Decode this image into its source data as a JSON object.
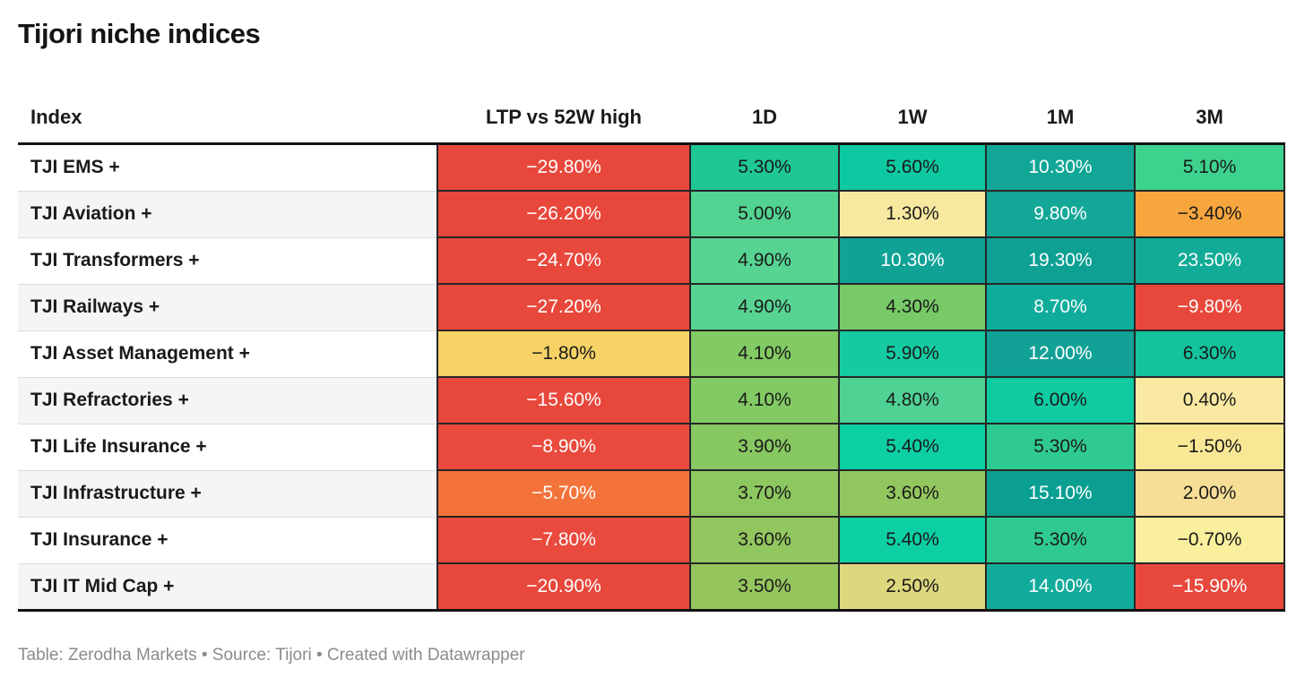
{
  "title": "Tijori niche indices",
  "footer": "Table: Zerodha Markets • Source: Tijori • Created with Datawrapper",
  "table": {
    "columns": [
      "Index",
      "LTP vs 52W high",
      "1D",
      "1W",
      "1M",
      "3M"
    ],
    "rows": [
      {
        "index": "TJI EMS +",
        "cells": [
          {
            "text": "−29.80%",
            "bg": "#e8483c",
            "fg": "#ffffff"
          },
          {
            "text": "5.30%",
            "bg": "#1fc795",
            "fg": "#1a1a1a"
          },
          {
            "text": "5.60%",
            "bg": "#0dc9a1",
            "fg": "#1a1a1a"
          },
          {
            "text": "10.30%",
            "bg": "#11a696",
            "fg": "#ffffff"
          },
          {
            "text": "5.10%",
            "bg": "#3ed28f",
            "fg": "#1a1a1a"
          }
        ]
      },
      {
        "index": "TJI Aviation +",
        "cells": [
          {
            "text": "−26.20%",
            "bg": "#e8483c",
            "fg": "#ffffff"
          },
          {
            "text": "5.00%",
            "bg": "#52d391",
            "fg": "#1a1a1a"
          },
          {
            "text": "1.30%",
            "bg": "#f8e9a1",
            "fg": "#1a1a1a"
          },
          {
            "text": "9.80%",
            "bg": "#13a797",
            "fg": "#ffffff"
          },
          {
            "text": "−3.40%",
            "bg": "#f7a63e",
            "fg": "#1a1a1a"
          }
        ]
      },
      {
        "index": "TJI Transformers +",
        "cells": [
          {
            "text": "−24.70%",
            "bg": "#e8483c",
            "fg": "#ffffff"
          },
          {
            "text": "4.90%",
            "bg": "#57d492",
            "fg": "#1a1a1a"
          },
          {
            "text": "10.30%",
            "bg": "#10a295",
            "fg": "#ffffff"
          },
          {
            "text": "19.30%",
            "bg": "#0da093",
            "fg": "#ffffff"
          },
          {
            "text": "23.50%",
            "bg": "#12ab97",
            "fg": "#ffffff"
          }
        ]
      },
      {
        "index": "TJI Railways +",
        "cells": [
          {
            "text": "−27.20%",
            "bg": "#e8483c",
            "fg": "#ffffff"
          },
          {
            "text": "4.90%",
            "bg": "#57d492",
            "fg": "#1a1a1a"
          },
          {
            "text": "4.30%",
            "bg": "#77ca67",
            "fg": "#1a1a1a"
          },
          {
            "text": "8.70%",
            "bg": "#0fac9c",
            "fg": "#ffffff"
          },
          {
            "text": "−9.80%",
            "bg": "#e8483c",
            "fg": "#ffffff"
          }
        ]
      },
      {
        "index": "TJI Asset Management +",
        "cells": [
          {
            "text": "−1.80%",
            "bg": "#f7d266",
            "fg": "#1a1a1a"
          },
          {
            "text": "4.10%",
            "bg": "#82ca63",
            "fg": "#1a1a1a"
          },
          {
            "text": "5.90%",
            "bg": "#14cba1",
            "fg": "#1a1a1a"
          },
          {
            "text": "12.00%",
            "bg": "#12a196",
            "fg": "#ffffff"
          },
          {
            "text": "6.30%",
            "bg": "#12c39c",
            "fg": "#1a1a1a"
          }
        ]
      },
      {
        "index": "TJI Refractories +",
        "cells": [
          {
            "text": "−15.60%",
            "bg": "#e8483c",
            "fg": "#ffffff"
          },
          {
            "text": "4.10%",
            "bg": "#82ca63",
            "fg": "#1a1a1a"
          },
          {
            "text": "4.80%",
            "bg": "#4fd294",
            "fg": "#1a1a1a"
          },
          {
            "text": "6.00%",
            "bg": "#0fcba2",
            "fg": "#1a1a1a"
          },
          {
            "text": "0.40%",
            "bg": "#f9e9a2",
            "fg": "#1a1a1a"
          }
        ]
      },
      {
        "index": "TJI Life Insurance +",
        "cells": [
          {
            "text": "−8.90%",
            "bg": "#e94a3d",
            "fg": "#ffffff"
          },
          {
            "text": "3.90%",
            "bg": "#87c862",
            "fg": "#1a1a1a"
          },
          {
            "text": "5.40%",
            "bg": "#0ccfa4",
            "fg": "#1a1a1a"
          },
          {
            "text": "5.30%",
            "bg": "#2fca91",
            "fg": "#1a1a1a"
          },
          {
            "text": "−1.50%",
            "bg": "#f8e795",
            "fg": "#1a1a1a"
          }
        ]
      },
      {
        "index": "TJI Infrastructure +",
        "cells": [
          {
            "text": "−5.70%",
            "bg": "#f3733a",
            "fg": "#ffffff"
          },
          {
            "text": "3.70%",
            "bg": "#8dc760",
            "fg": "#1a1a1a"
          },
          {
            "text": "3.60%",
            "bg": "#92c65e",
            "fg": "#1a1a1a"
          },
          {
            "text": "15.10%",
            "bg": "#0b9f92",
            "fg": "#ffffff"
          },
          {
            "text": "2.00%",
            "bg": "#f6de96",
            "fg": "#1a1a1a"
          }
        ]
      },
      {
        "index": "TJI Insurance +",
        "cells": [
          {
            "text": "−7.80%",
            "bg": "#e94a3d",
            "fg": "#ffffff"
          },
          {
            "text": "3.60%",
            "bg": "#92c65e",
            "fg": "#1a1a1a"
          },
          {
            "text": "5.40%",
            "bg": "#0ccfa4",
            "fg": "#1a1a1a"
          },
          {
            "text": "5.30%",
            "bg": "#2fca91",
            "fg": "#1a1a1a"
          },
          {
            "text": "−0.70%",
            "bg": "#f9ef9c",
            "fg": "#1a1a1a"
          }
        ]
      },
      {
        "index": "TJI IT Mid Cap +",
        "cells": [
          {
            "text": "−20.90%",
            "bg": "#e8483c",
            "fg": "#ffffff"
          },
          {
            "text": "3.50%",
            "bg": "#95c55d",
            "fg": "#1a1a1a"
          },
          {
            "text": "2.50%",
            "bg": "#ddd77d",
            "fg": "#1a1a1a"
          },
          {
            "text": "14.00%",
            "bg": "#12ab9b",
            "fg": "#ffffff"
          },
          {
            "text": "−15.90%",
            "bg": "#e8483c",
            "fg": "#ffffff"
          }
        ]
      }
    ]
  },
  "colors": {
    "heat_negative_strong": "#e8483c",
    "heat_negative_mid": "#f3733a",
    "heat_negative_soft": "#f7a63e",
    "heat_neutral": "#f8e9a1",
    "heat_positive_soft": "#95c55d",
    "heat_positive_mid": "#1fc795",
    "heat_positive_strong": "#0da093",
    "header_rule": "#111111",
    "row_stripe": "#f5f5f5",
    "footer_text": "#8b8b8b"
  },
  "chart_data": {
    "type": "table",
    "title": "Tijori niche indices",
    "columns": [
      "Index",
      "LTP vs 52W high",
      "1D",
      "1W",
      "1M",
      "3M"
    ],
    "rows": [
      [
        "TJI EMS +",
        -29.8,
        5.3,
        5.6,
        10.3,
        5.1
      ],
      [
        "TJI Aviation +",
        -26.2,
        5.0,
        1.3,
        9.8,
        -3.4
      ],
      [
        "TJI Transformers +",
        -24.7,
        4.9,
        10.3,
        19.3,
        23.5
      ],
      [
        "TJI Railways +",
        -27.2,
        4.9,
        4.3,
        8.7,
        -9.8
      ],
      [
        "TJI Asset Management +",
        -1.8,
        4.1,
        5.9,
        12.0,
        6.3
      ],
      [
        "TJI Refractories +",
        -15.6,
        4.1,
        4.8,
        6.0,
        0.4
      ],
      [
        "TJI Life Insurance +",
        -8.9,
        3.9,
        5.4,
        5.3,
        -1.5
      ],
      [
        "TJI Infrastructure +",
        -5.7,
        3.7,
        3.6,
        15.1,
        2.0
      ],
      [
        "TJI Insurance +",
        -7.8,
        3.6,
        5.4,
        5.3,
        -0.7
      ],
      [
        "TJI IT Mid Cap +",
        -20.9,
        3.5,
        2.5,
        14.0,
        -15.9
      ]
    ],
    "value_unit": "%",
    "heatmap": true,
    "legend_position": "none",
    "note": "Cells colored red (negative) through yellow (near zero) to green/teal (positive)"
  }
}
